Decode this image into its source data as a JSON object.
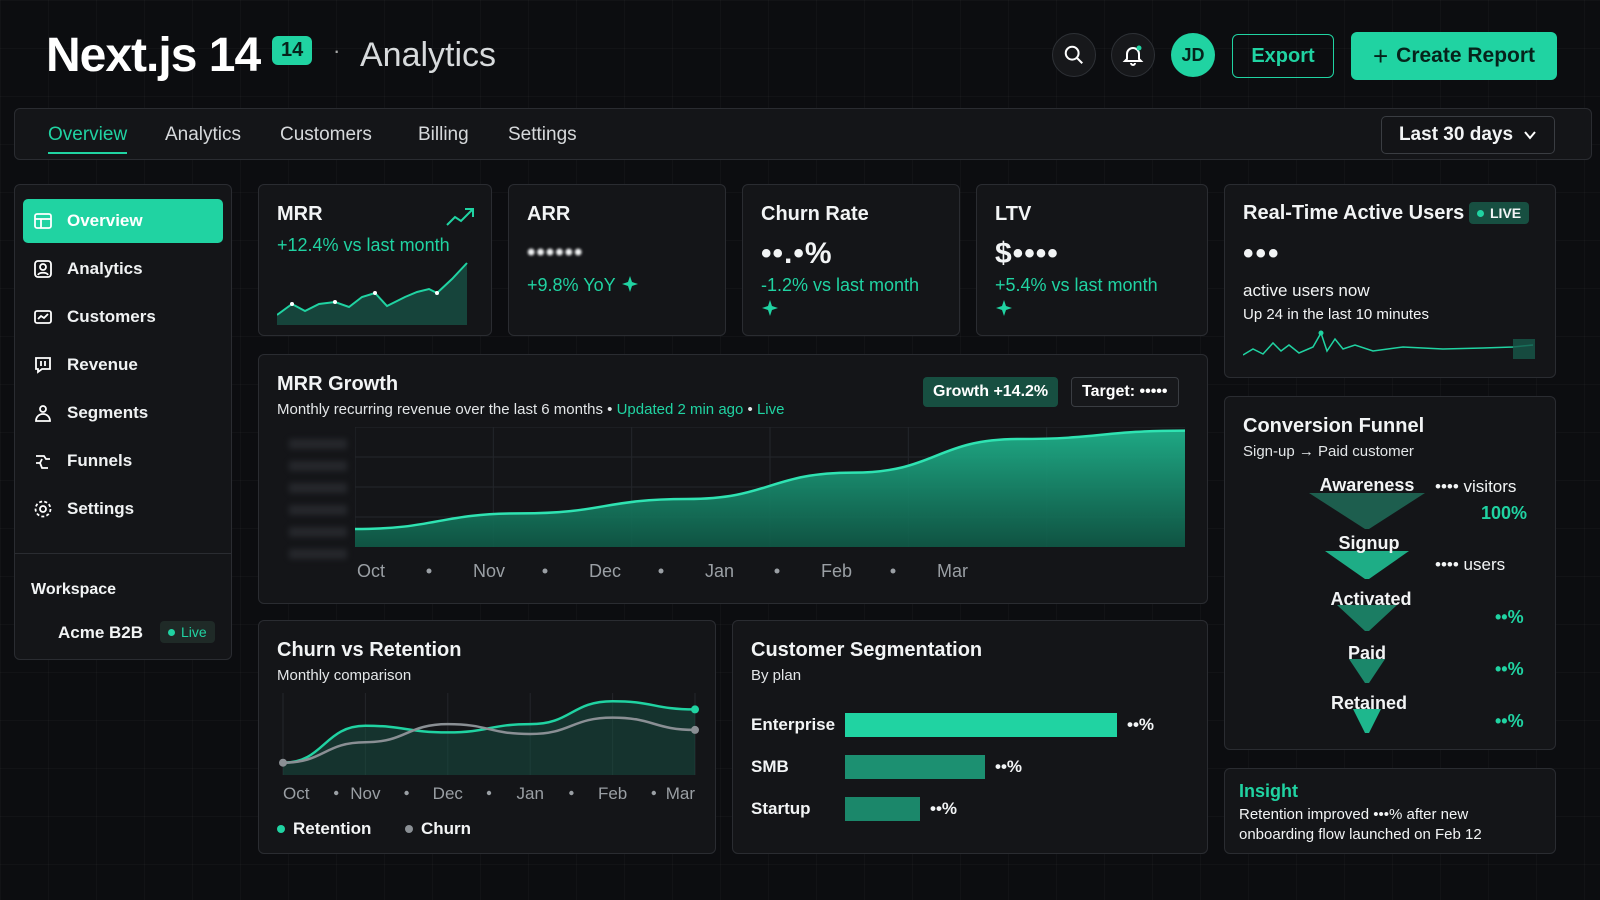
{
  "header": {
    "brand": "Next.js 14",
    "brand_badge": "14",
    "separator": "·",
    "section": "Analytics",
    "avatar_initials": "JD",
    "export_label": "Export",
    "create_label": "Create Report",
    "create_icon": "+"
  },
  "tabs": [
    {
      "label": "Overview",
      "active": true
    },
    {
      "label": "Analytics"
    },
    {
      "label": "Customers"
    },
    {
      "label": "Billing"
    },
    {
      "label": "Settings"
    }
  ],
  "range": {
    "label": "Last 30 days"
  },
  "sidebar": {
    "items": [
      {
        "label": "Overview",
        "icon": "dashboard-icon",
        "active": true
      },
      {
        "label": "Analytics",
        "icon": "user-icon"
      },
      {
        "label": "Customers",
        "icon": "window-icon"
      },
      {
        "label": "Revenue",
        "icon": "revenue-icon"
      },
      {
        "label": "Segments",
        "icon": "segments-icon"
      },
      {
        "label": "Funnels",
        "icon": "funnel-icon"
      },
      {
        "label": "Settings",
        "icon": "gear-icon"
      }
    ],
    "workspace_label": "Workspace",
    "workspace_name": "Acme B2B",
    "workspace_status": "Live"
  },
  "kpis": {
    "mrr": {
      "title": "MRR",
      "delta": "+12.4% vs last month"
    },
    "arr": {
      "title": "ARR",
      "value": "••••••",
      "delta": "+9.8% YoY"
    },
    "churn": {
      "title": "Churn Rate",
      "value": "••.•%",
      "delta": "-1.2% vs last month"
    },
    "ltv": {
      "title": "LTV",
      "value": "$••••",
      "delta": "+5.4% vs last month"
    }
  },
  "realtime": {
    "title": "Real-Time Active Users",
    "badge": "LIVE",
    "value": "•••",
    "label": "active users now",
    "sub": "Up 24 in the last 10 minutes"
  },
  "mrr_growth": {
    "title": "MRR Growth",
    "subtitle": "Monthly recurring revenue over the last 6 months",
    "updated": "Updated 2 min ago",
    "live": "Live",
    "growth_pill": "Growth +14.2%",
    "target_pill": "Target: •••••"
  },
  "churn_retention": {
    "title": "Churn vs Retention",
    "subtitle": "Monthly comparison",
    "legend_retention": "Retention",
    "legend_churn": "Churn"
  },
  "segmentation": {
    "title": "Customer Segmentation",
    "subtitle": "By plan",
    "rows": [
      {
        "label": "Enterprise",
        "value": "••%",
        "share": 0.76
      },
      {
        "label": "SMB",
        "value": "••%",
        "share": 0.39
      },
      {
        "label": "Startup",
        "value": "••%",
        "share": 0.21
      }
    ]
  },
  "funnel": {
    "title": "Conversion Funnel",
    "subtitle": "Sign-up → Paid customer",
    "stages": [
      {
        "label": "Awareness",
        "note": "•••• visitors",
        "pct": "100%"
      },
      {
        "label": "Signup",
        "note": "•••• users",
        "pct": ""
      },
      {
        "label": "Activated",
        "note": "",
        "pct": "••%"
      },
      {
        "label": "Paid",
        "note": "",
        "pct": "••%"
      },
      {
        "label": "Retained",
        "note": "",
        "pct": "••%"
      }
    ]
  },
  "insight": {
    "title": "Insight",
    "text": "Retention improved •••% after new onboarding flow launched on Feb 12"
  },
  "chart_data": [
    {
      "type": "area",
      "title": "MRR Growth",
      "categories": [
        "Oct",
        "Nov",
        "Dec",
        "Jan",
        "Feb",
        "Mar"
      ],
      "series": [
        {
          "values": [
            0.15,
            0.28,
            0.4,
            0.62,
            0.9,
            0.97
          ]
        }
      ]
    },
    {
      "type": "line",
      "title": "Churn vs Retention",
      "categories": [
        "Oct",
        "Nov",
        "Dec",
        "Jan",
        "Feb",
        "Mar"
      ],
      "series": [
        {
          "name": "Retention",
          "values": [
            0.15,
            0.6,
            0.52,
            0.62,
            0.9,
            0.8
          ]
        },
        {
          "name": "Churn",
          "values": [
            0.15,
            0.4,
            0.62,
            0.5,
            0.7,
            0.55
          ]
        }
      ]
    }
  ]
}
